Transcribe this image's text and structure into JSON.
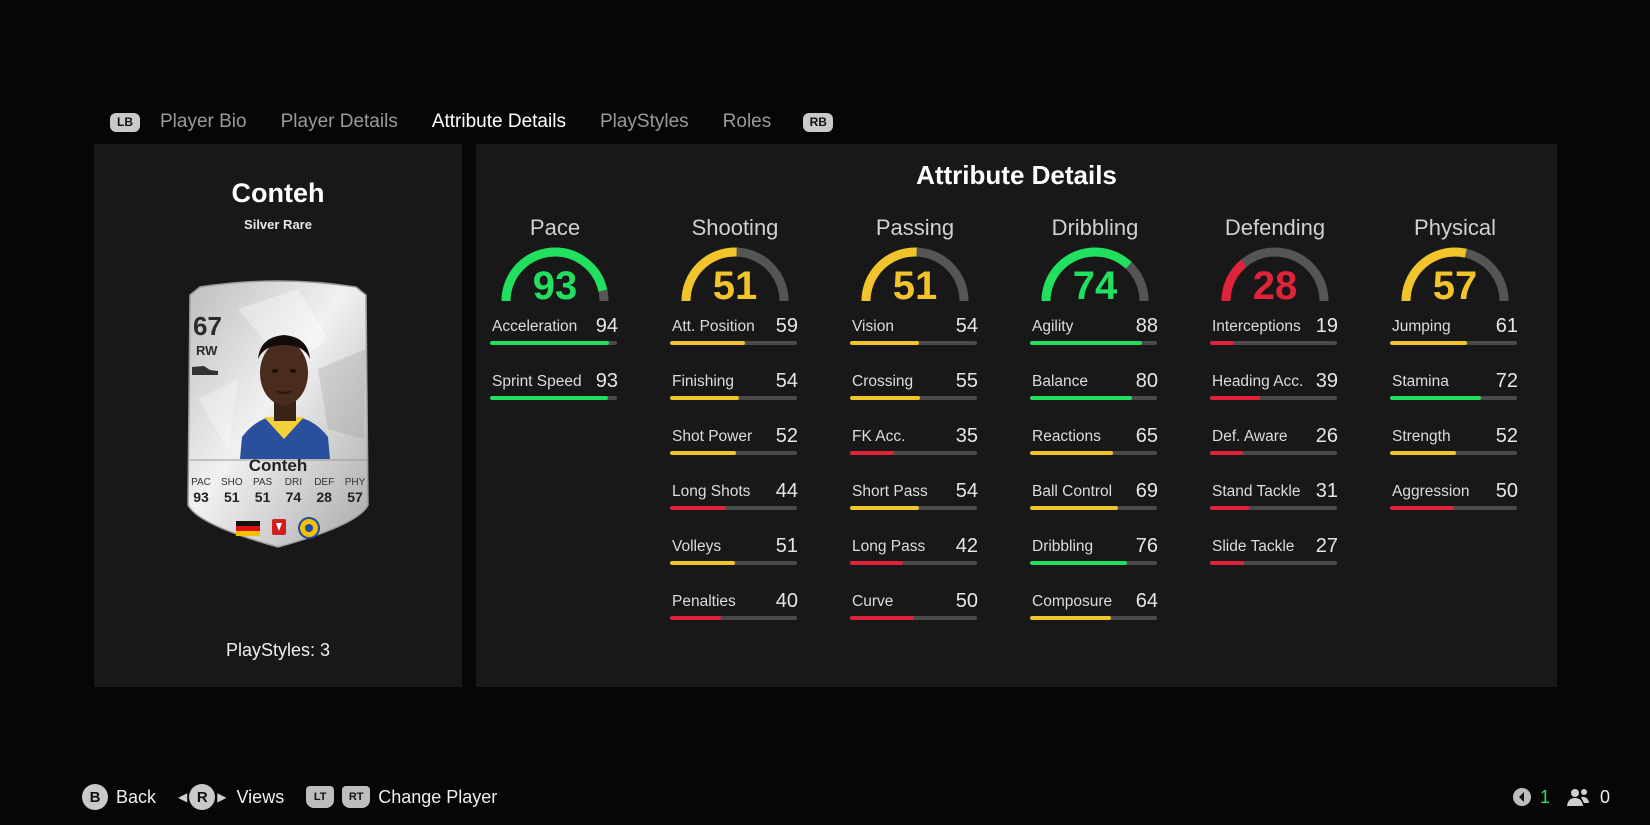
{
  "tabs": {
    "left_bumper": "LB",
    "right_bumper": "RB",
    "items": [
      "Player Bio",
      "Player Details",
      "Attribute Details",
      "PlayStyles",
      "Roles"
    ],
    "active": "Attribute Details"
  },
  "player": {
    "name": "Conteh",
    "rarity": "Silver Rare",
    "playstyles": "PlayStyles: 3",
    "card": {
      "rating": "67",
      "position": "RW",
      "name": "Conteh",
      "stats": [
        {
          "label": "PAC",
          "value": "93"
        },
        {
          "label": "SHO",
          "value": "51"
        },
        {
          "label": "PAS",
          "value": "51"
        },
        {
          "label": "DRI",
          "value": "74"
        },
        {
          "label": "DEF",
          "value": "28"
        },
        {
          "label": "PHY",
          "value": "57"
        }
      ]
    }
  },
  "attributes": {
    "title": "Attribute Details",
    "colors": {
      "green": "#22e05f",
      "yellow": "#f2c42c",
      "red": "#e0223a",
      "track": "#4a4a4a"
    },
    "categories": [
      {
        "name": "Pace",
        "value": 93,
        "color": "green",
        "stats": [
          {
            "name": "Acceleration",
            "value": 94,
            "color": "green"
          },
          {
            "name": "Sprint Speed",
            "value": 93,
            "color": "green"
          }
        ]
      },
      {
        "name": "Shooting",
        "value": 51,
        "color": "yellow",
        "stats": [
          {
            "name": "Att. Position",
            "value": 59,
            "color": "yellow"
          },
          {
            "name": "Finishing",
            "value": 54,
            "color": "yellow"
          },
          {
            "name": "Shot Power",
            "value": 52,
            "color": "yellow"
          },
          {
            "name": "Long Shots",
            "value": 44,
            "color": "red"
          },
          {
            "name": "Volleys",
            "value": 51,
            "color": "yellow"
          },
          {
            "name": "Penalties",
            "value": 40,
            "color": "red"
          }
        ]
      },
      {
        "name": "Passing",
        "value": 51,
        "color": "yellow",
        "stats": [
          {
            "name": "Vision",
            "value": 54,
            "color": "yellow"
          },
          {
            "name": "Crossing",
            "value": 55,
            "color": "yellow"
          },
          {
            "name": "FK Acc.",
            "value": 35,
            "color": "red"
          },
          {
            "name": "Short Pass",
            "value": 54,
            "color": "yellow"
          },
          {
            "name": "Long Pass",
            "value": 42,
            "color": "red"
          },
          {
            "name": "Curve",
            "value": 50,
            "color": "red"
          }
        ]
      },
      {
        "name": "Dribbling",
        "value": 74,
        "color": "green",
        "stats": [
          {
            "name": "Agility",
            "value": 88,
            "color": "green"
          },
          {
            "name": "Balance",
            "value": 80,
            "color": "green"
          },
          {
            "name": "Reactions",
            "value": 65,
            "color": "yellow"
          },
          {
            "name": "Ball Control",
            "value": 69,
            "color": "yellow"
          },
          {
            "name": "Dribbling",
            "value": 76,
            "color": "green"
          },
          {
            "name": "Composure",
            "value": 64,
            "color": "yellow"
          }
        ]
      },
      {
        "name": "Defending",
        "value": 28,
        "color": "red",
        "stats": [
          {
            "name": "Interceptions",
            "value": 19,
            "color": "red"
          },
          {
            "name": "Heading Acc.",
            "value": 39,
            "color": "red"
          },
          {
            "name": "Def. Aware",
            "value": 26,
            "color": "red"
          },
          {
            "name": "Stand Tackle",
            "value": 31,
            "color": "red"
          },
          {
            "name": "Slide Tackle",
            "value": 27,
            "color": "red"
          }
        ]
      },
      {
        "name": "Physical",
        "value": 57,
        "color": "yellow",
        "stats": [
          {
            "name": "Jumping",
            "value": 61,
            "color": "yellow"
          },
          {
            "name": "Stamina",
            "value": 72,
            "color": "green"
          },
          {
            "name": "Strength",
            "value": 52,
            "color": "yellow"
          },
          {
            "name": "Aggression",
            "value": 50,
            "color": "red"
          }
        ]
      }
    ]
  },
  "footer": {
    "back_key": "B",
    "back_label": "Back",
    "views_key": "R",
    "views_label": "Views",
    "lt_key": "LT",
    "rt_key": "RT",
    "change_label": "Change Player",
    "count_green": "1",
    "count_white": "0"
  }
}
